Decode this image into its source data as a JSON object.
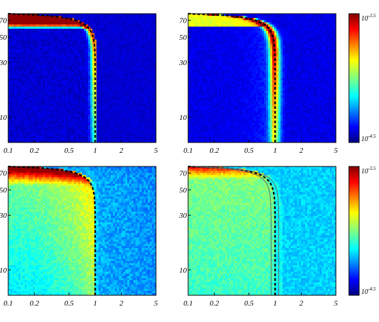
{
  "chart_data": [
    {
      "type": "heatmap",
      "panel": "top-left",
      "x_scale": "log",
      "y_scale": "log",
      "xlim": [
        0.1,
        5
      ],
      "ylim": [
        6,
        80
      ],
      "x_ticks": [
        "0.1",
        "0.2",
        "0.5",
        "1",
        "2",
        "5"
      ],
      "y_ticks": [
        "10",
        "30",
        "50",
        "70"
      ],
      "curves": [
        {
          "style": "black-dashed",
          "asymptote_x": 1
        }
      ]
    },
    {
      "type": "heatmap",
      "panel": "top-right",
      "x_scale": "log",
      "y_scale": "log",
      "xlim": [
        0.1,
        5
      ],
      "ylim": [
        6,
        80
      ],
      "x_ticks": [
        "0.1",
        "0.2",
        "0.5",
        "1",
        "2",
        "5"
      ],
      "y_ticks": [
        "10",
        "30",
        "50",
        "70"
      ],
      "curves": [
        {
          "style": "black-dashed",
          "asymptote_x": 1
        }
      ]
    },
    {
      "type": "heatmap",
      "panel": "bottom-left",
      "x_scale": "log",
      "y_scale": "log",
      "xlim": [
        0.1,
        5
      ],
      "ylim": [
        6,
        80
      ],
      "x_ticks": [
        "0.1",
        "0.2",
        "0.5",
        "1",
        "2",
        "5"
      ],
      "y_ticks": [
        "10",
        "30",
        "50",
        "70"
      ],
      "curves": [
        {
          "style": "black-dashed",
          "asymptote_x": 1
        }
      ]
    },
    {
      "type": "heatmap",
      "panel": "bottom-right",
      "x_scale": "log",
      "y_scale": "log",
      "xlim": [
        0.1,
        5
      ],
      "ylim": [
        6,
        80
      ],
      "x_ticks": [
        "0.1",
        "0.2",
        "0.5",
        "1",
        "2",
        "5"
      ],
      "y_ticks": [
        "10",
        "30",
        "50",
        "70"
      ],
      "curves": [
        {
          "style": "black-dashed",
          "asymptote_x": 1
        },
        {
          "style": "gray-solid",
          "asymptote_x": 0.9
        },
        {
          "style": "gray-solid",
          "asymptote_x": 1.1
        }
      ]
    }
  ],
  "colorbars": [
    {
      "for_row": "top",
      "colormap": "jet",
      "max_label": {
        "base": "10",
        "exp": "-3.5"
      },
      "min_label": {
        "base": "10",
        "exp": "-4.5"
      }
    },
    {
      "for_row": "bottom",
      "colormap": "jet",
      "max_label": {
        "base": "10",
        "exp": "-3.5"
      },
      "min_label": {
        "base": "10",
        "exp": "-4.5"
      }
    }
  ]
}
